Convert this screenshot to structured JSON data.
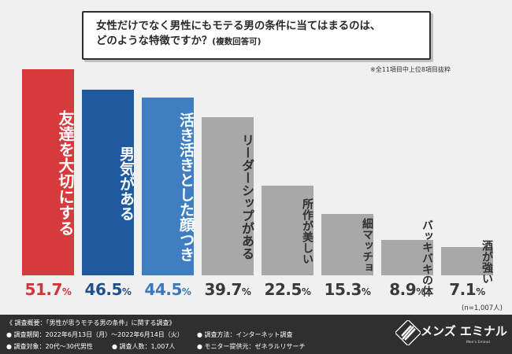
{
  "question": {
    "line1": "女性だけでなく男性にもモテる男の条件に当てはまるのは、",
    "line2": "どのような特徴ですか？",
    "suffix": "(複数回答可)"
  },
  "note": "※全11項目中上位8項目抜粋",
  "sample_size": "(n=1,007人)",
  "colors": {
    "bar_red": "#d63a3d",
    "bar_navy": "#1f5a9e",
    "bar_blue": "#3f7fc1",
    "bar_gray": "#a8a8a8",
    "value_red": "#d3343a",
    "value_navy": "#1f4f8f",
    "value_blue": "#3a78bd",
    "value_gray": "#3a3a3a"
  },
  "chart_data": {
    "type": "bar",
    "categories": [
      "友達を大切にする",
      "男気がある",
      "活き活きとした顔つき",
      "リーダーシップがある",
      "所作が美しい",
      "細マッチョ",
      "バッキバキの体",
      "酒が強い"
    ],
    "values": [
      51.7,
      46.5,
      44.5,
      39.7,
      22.5,
      15.3,
      8.9,
      7.1
    ],
    "value_labels": [
      {
        "num": "51.7",
        "unit": "%"
      },
      {
        "num": "46.5",
        "unit": "%"
      },
      {
        "num": "44.5",
        "unit": "%"
      },
      {
        "num": "39.7",
        "unit": "%"
      },
      {
        "num": "22.5",
        "unit": "%"
      },
      {
        "num": "15.3",
        "unit": "%"
      },
      {
        "num": "8.9",
        "unit": "%"
      },
      {
        "num": "7.1",
        "unit": "%"
      }
    ],
    "unit": "%",
    "ylim": [
      0,
      60
    ],
    "grid": false,
    "legend": "none"
  },
  "footer": {
    "title": "《 調査概要：「男性が思うモテる男の条件」に関する調査》",
    "period": "● 調査期間：2022年6月13日（月）〜2022年6月14日（火）",
    "target": "● 調査対象：20代〜30代男性",
    "count": "● 調査人数：1,007人",
    "method": "● 調査方法：インターネット調査",
    "provider": "● モニター提供元：ゼネラルリサーチ"
  },
  "logo": {
    "text": "メンズ エミナル",
    "sub": "Men's Eminal"
  }
}
